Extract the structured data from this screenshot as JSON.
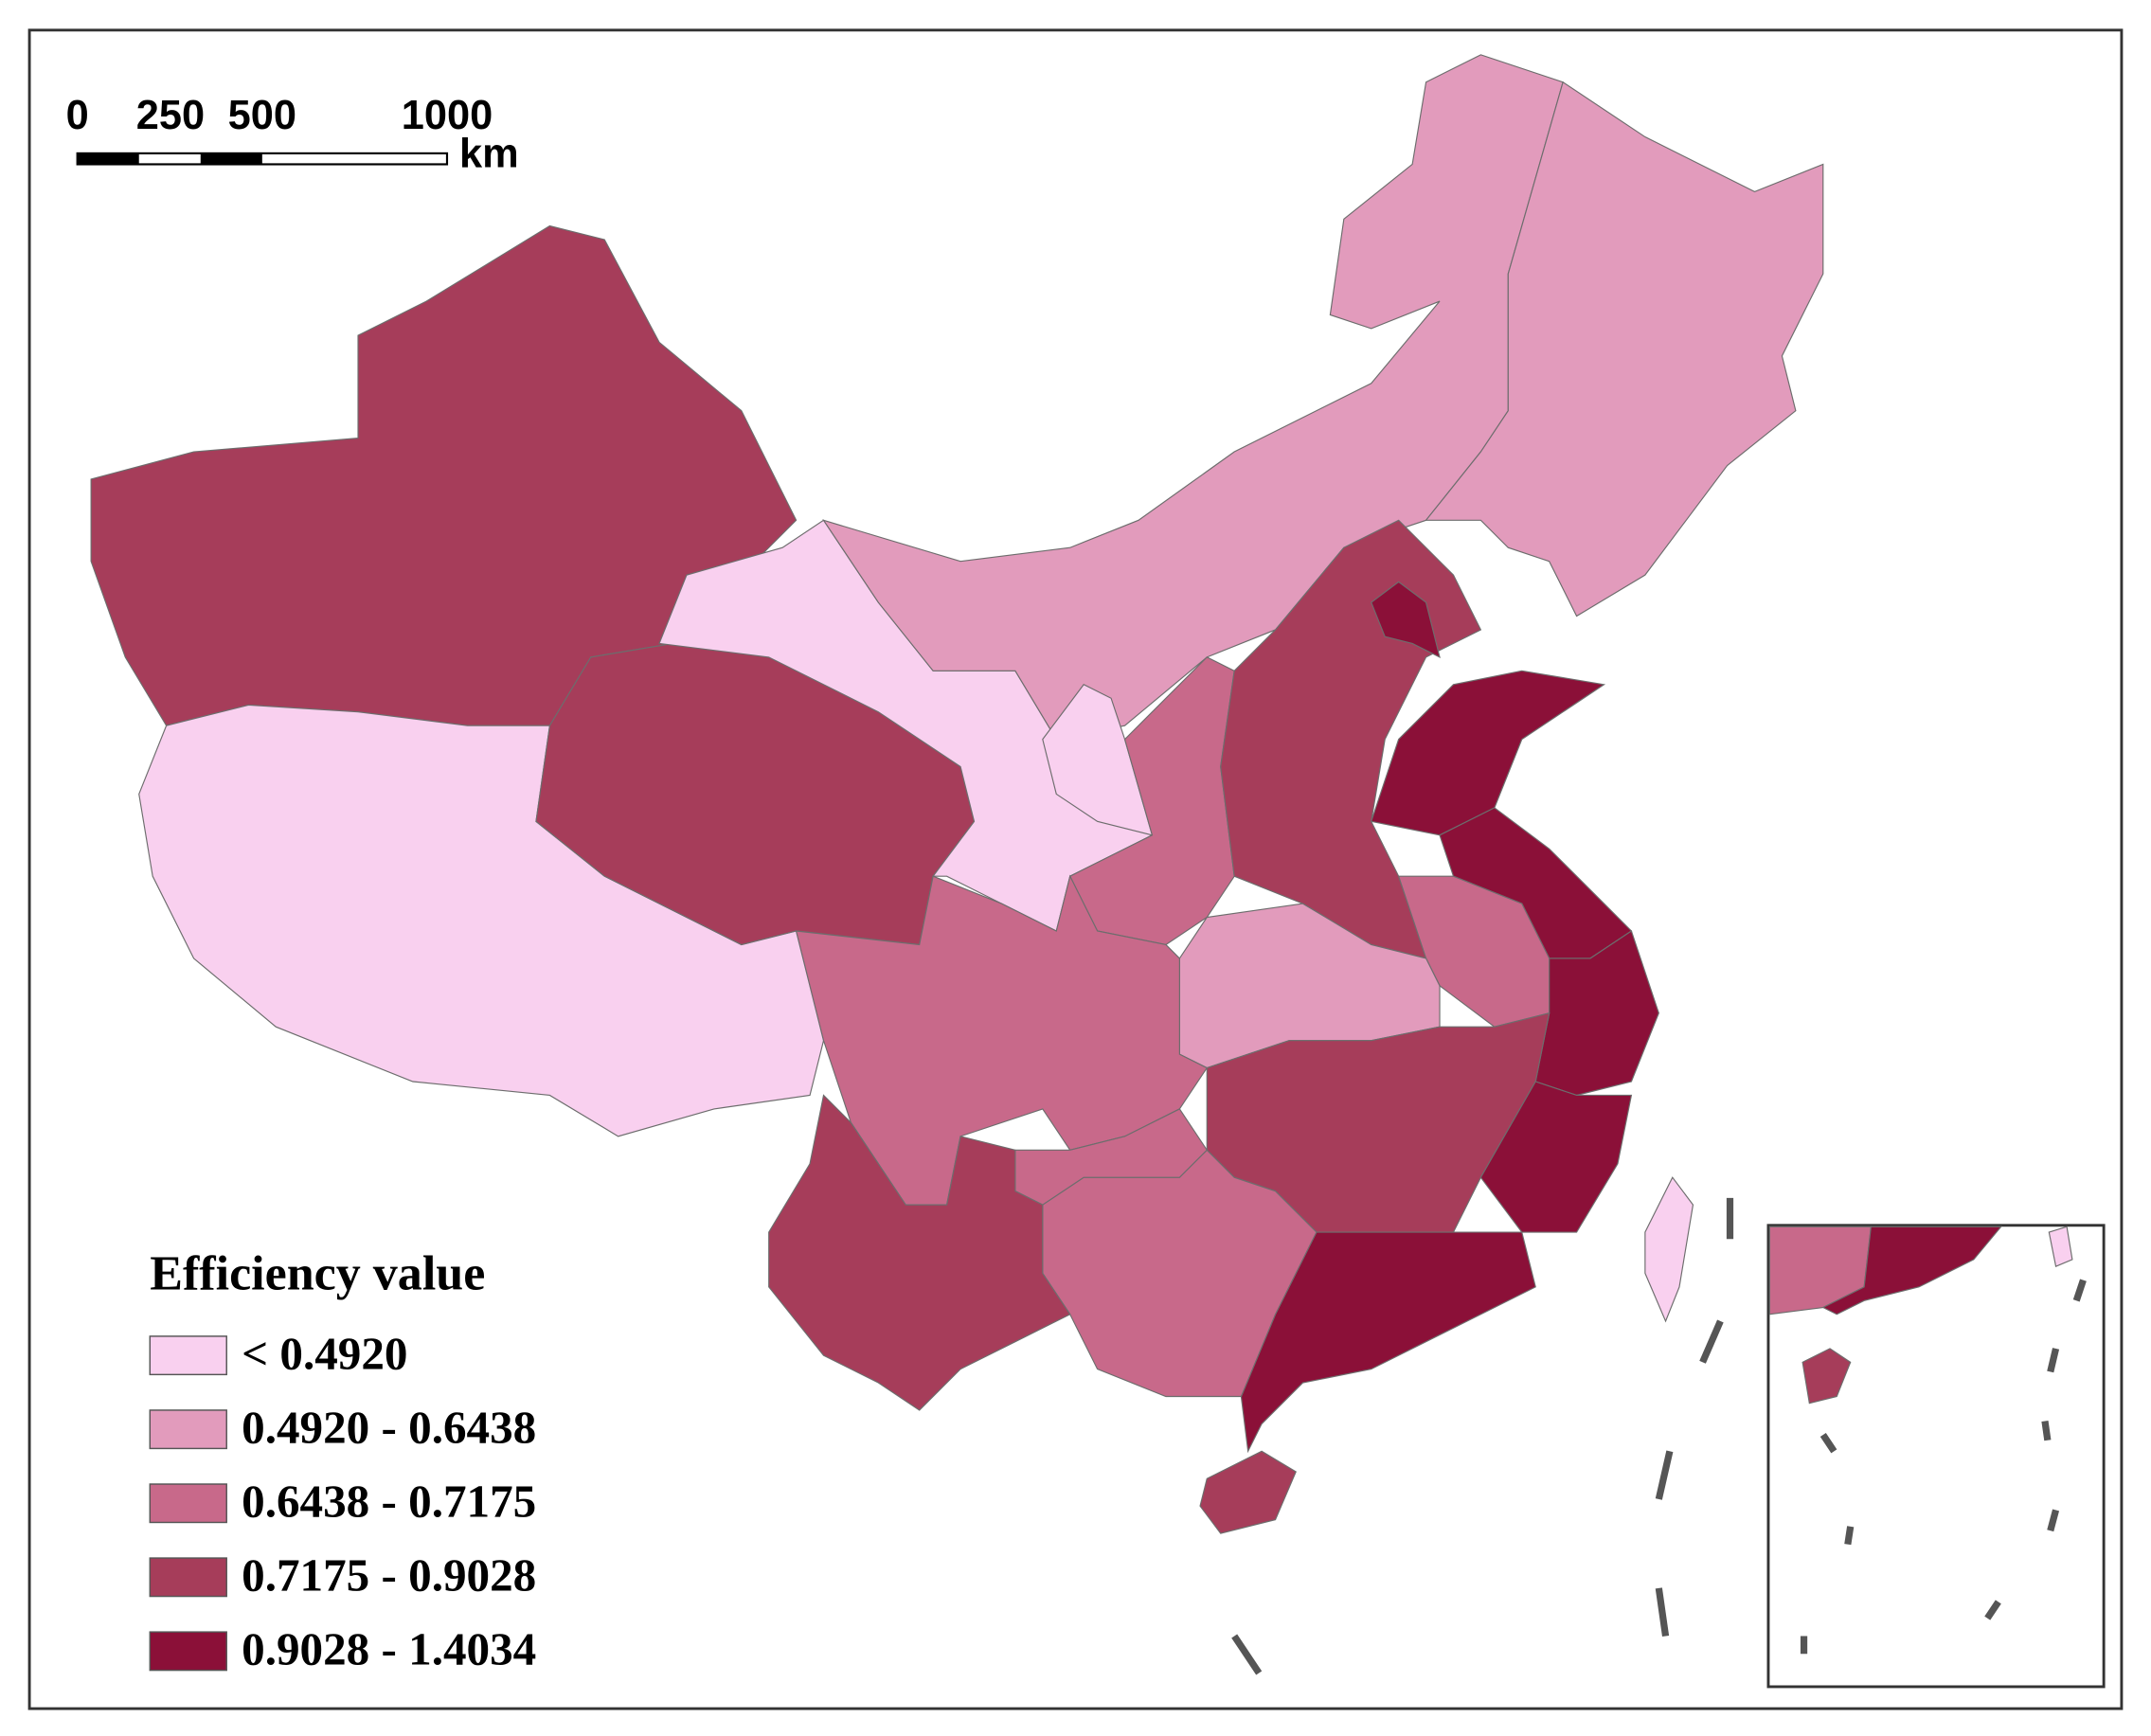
{
  "scale_bar": {
    "ticks": [
      "0",
      "250",
      "500",
      "1000"
    ],
    "unit": "km"
  },
  "legend": {
    "title": "Efficiency value",
    "items": [
      {
        "label": "< 0.4920",
        "color": "#f9d0ef"
      },
      {
        "label": "0.4920 - 0.6438",
        "color": "#e29bbc"
      },
      {
        "label": "0.6438 - 0.7175",
        "color": "#c8698a"
      },
      {
        "label": "0.7175 - 0.9028",
        "color": "#a63d5a"
      },
      {
        "label": "0.9028 - 1.4034",
        "color": "#8b1038"
      }
    ]
  }
}
